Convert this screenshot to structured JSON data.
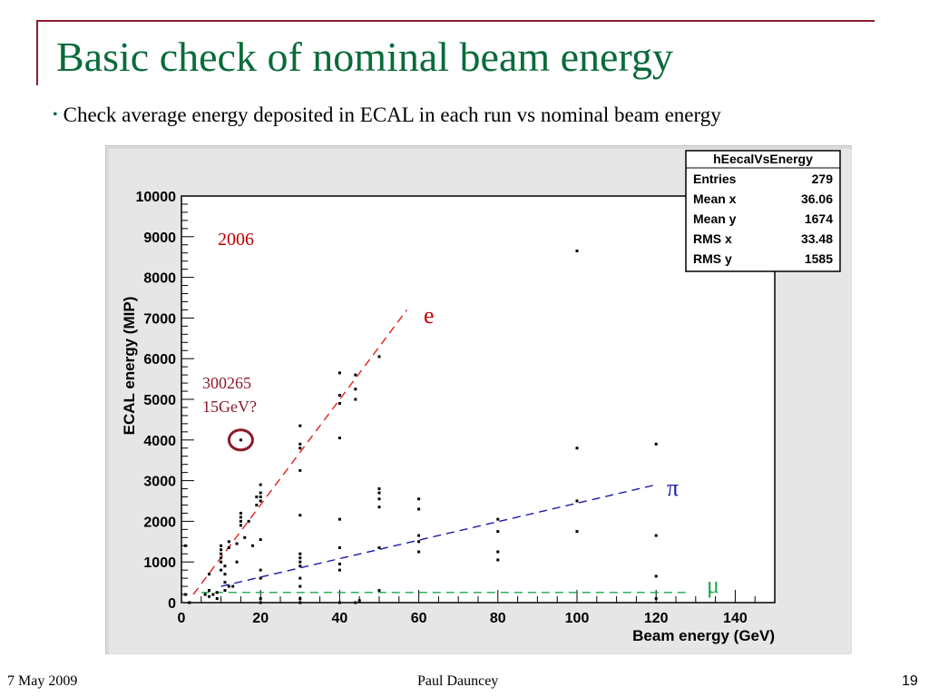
{
  "slide": {
    "title": "Basic check of nominal beam energy",
    "bullet": "Check average energy deposited in ECAL in each run vs nominal beam energy",
    "footer_date": "7 May 2009",
    "footer_author": "Paul Dauncey",
    "page_number": "19",
    "title_color": "#0a6b3a",
    "accent_color": "#8b1a2b"
  },
  "chart_data": {
    "type": "scatter",
    "xlabel": "Beam energy (GeV)",
    "ylabel": "ECAL energy (MIP)",
    "xlim": [
      0,
      150
    ],
    "ylim": [
      0,
      10000
    ],
    "xticks": [
      0,
      20,
      40,
      60,
      80,
      100,
      120,
      140
    ],
    "yticks": [
      0,
      1000,
      2000,
      3000,
      4000,
      5000,
      6000,
      7000,
      8000,
      9000,
      10000
    ],
    "stats_box": {
      "title": "hEecalVsEnergy",
      "rows": [
        {
          "label": "Entries",
          "value": "279"
        },
        {
          "label": "Mean x",
          "value": "36.06"
        },
        {
          "label": "Mean y",
          "value": "1674"
        },
        {
          "label": "RMS x",
          "value": "33.48"
        },
        {
          "label": "RMS y",
          "value": "1585"
        }
      ]
    },
    "annotations": {
      "year": "2006",
      "run_note_line1": "300265",
      "run_note_line2": "15GeV?",
      "electron": "e",
      "pion": "π",
      "muon": "μ"
    },
    "lines": [
      {
        "name": "e",
        "color": "#e02020",
        "x": [
          3,
          57
        ],
        "y": [
          200,
          7200
        ]
      },
      {
        "name": "π",
        "color": "#1a1aa8",
        "x": [
          10,
          120
        ],
        "y": [
          400,
          2900
        ]
      },
      {
        "name": "μ",
        "color": "#1aa84a",
        "x": [
          5,
          128
        ],
        "y": [
          250,
          250
        ]
      }
    ],
    "highlight": {
      "x": 15,
      "y": 4000
    },
    "points": [
      [
        1,
        1400
      ],
      [
        1,
        200
      ],
      [
        2,
        0
      ],
      [
        6,
        200
      ],
      [
        7,
        150
      ],
      [
        7,
        300
      ],
      [
        7,
        700
      ],
      [
        8,
        200
      ],
      [
        9,
        250
      ],
      [
        9,
        100
      ],
      [
        10,
        800
      ],
      [
        10,
        1000
      ],
      [
        10,
        1100
      ],
      [
        10,
        1200
      ],
      [
        10,
        1300
      ],
      [
        10,
        1400
      ],
      [
        11,
        900
      ],
      [
        11,
        700
      ],
      [
        11,
        500
      ],
      [
        11,
        300
      ],
      [
        12,
        1350
      ],
      [
        12,
        1500
      ],
      [
        12,
        400
      ],
      [
        13,
        400
      ],
      [
        14,
        1450
      ],
      [
        14,
        1000
      ],
      [
        15,
        1900
      ],
      [
        15,
        2000
      ],
      [
        15,
        2100
      ],
      [
        15,
        2200
      ],
      [
        15,
        4000
      ],
      [
        16,
        1600
      ],
      [
        17,
        2000
      ],
      [
        18,
        1400
      ],
      [
        19,
        2400
      ],
      [
        19,
        2600
      ],
      [
        20,
        2500
      ],
      [
        20,
        2600
      ],
      [
        20,
        2700
      ],
      [
        20,
        2900
      ],
      [
        20,
        1550
      ],
      [
        20,
        800
      ],
      [
        20,
        600
      ],
      [
        20,
        100
      ],
      [
        20,
        0
      ],
      [
        30,
        900
      ],
      [
        30,
        1000
      ],
      [
        30,
        1100
      ],
      [
        30,
        1200
      ],
      [
        30,
        600
      ],
      [
        30,
        400
      ],
      [
        30,
        100
      ],
      [
        30,
        0
      ],
      [
        30,
        2150
      ],
      [
        30,
        3250
      ],
      [
        30,
        3800
      ],
      [
        30,
        3900
      ],
      [
        30,
        4350
      ],
      [
        40,
        800
      ],
      [
        40,
        950
      ],
      [
        40,
        1350
      ],
      [
        40,
        2050
      ],
      [
        40,
        4050
      ],
      [
        40,
        4900
      ],
      [
        40,
        5100
      ],
      [
        40,
        5650
      ],
      [
        40,
        0
      ],
      [
        44,
        5000
      ],
      [
        44,
        5250
      ],
      [
        44,
        5600
      ],
      [
        44,
        0
      ],
      [
        45,
        50
      ],
      [
        50,
        300
      ],
      [
        50,
        1350
      ],
      [
        50,
        2350
      ],
      [
        50,
        2550
      ],
      [
        50,
        2700
      ],
      [
        50,
        2800
      ],
      [
        50,
        6050
      ],
      [
        60,
        1250
      ],
      [
        60,
        1500
      ],
      [
        60,
        1650
      ],
      [
        60,
        2300
      ],
      [
        60,
        2550
      ],
      [
        80,
        1050
      ],
      [
        80,
        1250
      ],
      [
        80,
        1750
      ],
      [
        80,
        2050
      ],
      [
        100,
        1750
      ],
      [
        100,
        2500
      ],
      [
        100,
        3800
      ],
      [
        100,
        8650
      ],
      [
        120,
        100
      ],
      [
        120,
        650
      ],
      [
        120,
        1650
      ],
      [
        120,
        3900
      ]
    ]
  }
}
